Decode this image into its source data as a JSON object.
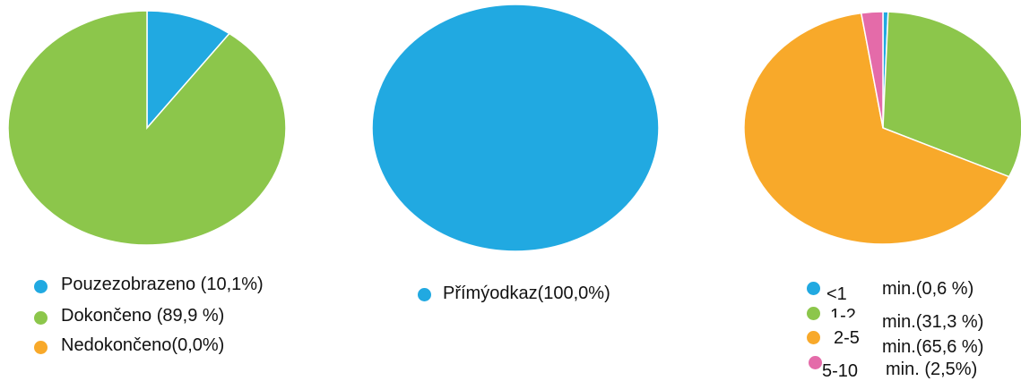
{
  "chart_data": [
    {
      "type": "pie",
      "slices": [
        {
          "label": "Pouzezobrazeno (10,1%)",
          "value": 10.1,
          "color": "#21a9e1"
        },
        {
          "label": "Dokončeno (89,9 %)",
          "value": 89.9,
          "color": "#8cc64b"
        },
        {
          "label": "Nedokončeno(0,0%)",
          "value": 0.0,
          "color": "#f8a92a"
        }
      ]
    },
    {
      "type": "pie",
      "slices": [
        {
          "label": "Přímýodkaz(100,0%)",
          "value": 100.0,
          "color": "#21a9e1"
        }
      ]
    },
    {
      "type": "pie",
      "slices": [
        {
          "label": "<1",
          "suffix": "min.(0,6 %)",
          "value": 0.6,
          "color": "#21a9e1"
        },
        {
          "label": "1-2",
          "suffix": "min.(31,3 %)",
          "value": 31.3,
          "color": "#8cc64b"
        },
        {
          "label": "2-5",
          "suffix": "min.(65,6 %)",
          "value": 65.6,
          "color": "#f8a92a"
        },
        {
          "label": "5-10",
          "suffix": "min. (2,5%)",
          "value": 2.5,
          "color": "#e46ba9"
        }
      ]
    }
  ]
}
